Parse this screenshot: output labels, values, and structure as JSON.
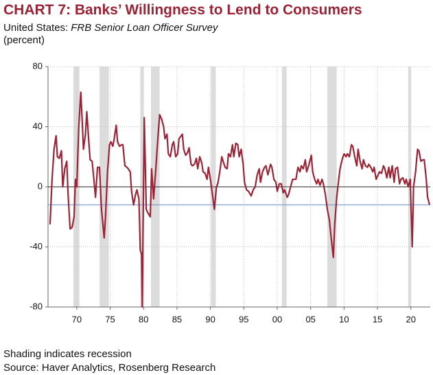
{
  "chart_data": {
    "type": "line",
    "title": "CHART 7: Banks’ Willingness to Lend to Consumers",
    "subtitle_prefix": "United States:",
    "subtitle": "FRB Senior Loan Officer Survey",
    "units": "(percent)",
    "footnotes": [
      "Shading indicates recession",
      "Source: Haver Analytics, Rosenberg Research"
    ],
    "xlim": [
      1965.7,
      2022.9
    ],
    "xticks": [
      {
        "value": 1970,
        "label": "70"
      },
      {
        "value": 1975,
        "label": "75"
      },
      {
        "value": 1980,
        "label": "80"
      },
      {
        "value": 1985,
        "label": "85"
      },
      {
        "value": 1990,
        "label": "90"
      },
      {
        "value": 1995,
        "label": "95"
      },
      {
        "value": 2000,
        "label": "00"
      },
      {
        "value": 2005,
        "label": "05"
      },
      {
        "value": 2010,
        "label": "10"
      },
      {
        "value": 2015,
        "label": "15"
      },
      {
        "value": 2020,
        "label": "20"
      }
    ],
    "ylim": [
      -80,
      80
    ],
    "yticks": [
      80,
      40,
      0,
      -40,
      -80
    ],
    "grid": true,
    "zero_line": true,
    "reference_line": -12,
    "reference_color": "#7f9fcf",
    "recession_color": "#dcdcdc",
    "recessions": [
      [
        1969.5,
        1970.4
      ],
      [
        1973.4,
        1974.8
      ],
      [
        1979.5,
        1980.0
      ],
      [
        1981.1,
        1982.4
      ],
      [
        1990.1,
        1990.8
      ],
      [
        2000.7,
        2001.4
      ],
      [
        2007.5,
        2008.9
      ],
      [
        2019.6,
        2020.0
      ]
    ],
    "series": [
      {
        "name": "Willingness to lend",
        "color": "#9b2335",
        "x": [
          1966.0,
          1966.3,
          1966.6,
          1966.9,
          1967.1,
          1967.4,
          1967.7,
          1967.9,
          1968.2,
          1968.5,
          1968.7,
          1969.0,
          1969.3,
          1969.6,
          1969.8,
          1970.0,
          1970.3,
          1970.6,
          1970.8,
          1971.0,
          1971.3,
          1971.5,
          1971.8,
          1972.0,
          1972.3,
          1972.6,
          1972.8,
          1973.1,
          1973.4,
          1973.7,
          1974.1,
          1974.3,
          1974.6,
          1974.9,
          1975.1,
          1975.4,
          1975.6,
          1975.9,
          1976.1,
          1976.4,
          1976.7,
          1976.9,
          1977.2,
          1977.5,
          1977.7,
          1978.0,
          1978.2,
          1978.5,
          1978.8,
          1979.0,
          1979.3,
          1979.5,
          1979.7,
          1979.8,
          1980.1,
          1980.4,
          1980.6,
          1981.0,
          1981.2,
          1981.5,
          1981.8,
          1982.1,
          1982.4,
          1982.7,
          1983.0,
          1983.2,
          1983.5,
          1983.7,
          1984.0,
          1984.3,
          1984.5,
          1984.8,
          1985.1,
          1985.3,
          1985.8,
          1986.0,
          1986.3,
          1986.6,
          1986.8,
          1987.1,
          1987.3,
          1987.6,
          1987.9,
          1988.1,
          1988.4,
          1988.7,
          1988.9,
          1989.2,
          1989.5,
          1989.7,
          1990.0,
          1990.3,
          1990.6,
          1990.9,
          1991.1,
          1991.4,
          1991.7,
          1991.9,
          1992.2,
          1992.5,
          1992.7,
          1993.0,
          1993.3,
          1993.5,
          1993.8,
          1994.1,
          1994.3,
          1994.6,
          1994.9,
          1995.1,
          1995.4,
          1995.7,
          1996.1,
          1996.4,
          1996.7,
          1997.0,
          1997.3,
          1997.5,
          1997.8,
          1998.1,
          1998.3,
          1998.6,
          1999.0,
          1999.2,
          1999.5,
          1999.8,
          2000.0,
          2000.3,
          2000.6,
          2000.9,
          2001.1,
          2001.5,
          2001.7,
          2002.0,
          2002.3,
          2002.5,
          2002.8,
          2003.1,
          2003.4,
          2003.6,
          2003.9,
          2004.2,
          2004.4,
          2004.7,
          2005.1,
          2005.3,
          2005.6,
          2005.9,
          2006.1,
          2006.4,
          2006.7,
          2006.9,
          2007.2,
          2007.5,
          2007.8,
          2008.1,
          2008.4,
          2008.6,
          2008.9,
          2009.2,
          2009.4,
          2009.7,
          2010.0,
          2010.3,
          2010.5,
          2010.8,
          2011.1,
          2011.3,
          2011.6,
          2011.9,
          2012.1,
          2012.4,
          2012.7,
          2012.9,
          2013.2,
          2013.5,
          2013.7,
          2014.0,
          2014.3,
          2014.5,
          2014.8,
          2015.1,
          2015.3,
          2015.6,
          2015.9,
          2016.1,
          2016.4,
          2016.7,
          2016.9,
          2017.2,
          2017.5,
          2017.7,
          2018.0,
          2018.3,
          2018.5,
          2018.8,
          2019.1,
          2019.3,
          2019.6,
          2019.9,
          2020.2,
          2020.4,
          2020.7,
          2021.0,
          2021.2,
          2021.5,
          2021.8,
          2022.0,
          2022.3,
          2022.5,
          2022.8
        ],
        "values": [
          -25,
          5,
          25,
          34,
          20,
          19,
          24,
          0,
          12,
          17,
          -5,
          -28,
          -27,
          -20,
          5,
          0,
          40,
          63,
          45,
          25,
          35,
          50,
          30,
          18,
          17,
          3,
          -7,
          13,
          13,
          -15,
          -34,
          -20,
          10,
          28,
          30,
          27,
          32,
          41,
          30,
          27,
          28,
          28,
          14,
          13,
          12,
          10,
          -3,
          -12,
          -5,
          -2,
          -8,
          -42,
          -45,
          -80,
          46,
          -15,
          -17,
          -20,
          12,
          -8,
          10,
          30,
          48,
          45,
          40,
          32,
          35,
          22,
          20,
          28,
          30,
          20,
          22,
          32,
          35,
          25,
          21,
          23,
          26,
          15,
          14,
          15,
          19,
          12,
          20,
          16,
          10,
          9,
          5,
          13,
          5,
          -5,
          -15,
          0,
          2,
          10,
          20,
          17,
          13,
          12,
          22,
          20,
          28,
          20,
          29,
          28,
          20,
          25,
          15,
          3,
          -2,
          -3,
          -6,
          -2,
          0,
          8,
          12,
          3,
          10,
          13,
          14,
          8,
          15,
          13,
          5,
          3,
          -3,
          2,
          2,
          -4,
          -2,
          -7,
          -5,
          0,
          5,
          5,
          5,
          13,
          10,
          14,
          12,
          18,
          10,
          14,
          21,
          10,
          5,
          2,
          5,
          1,
          5,
          2,
          -5,
          -15,
          -22,
          -35,
          -47,
          -25,
          -7,
          5,
          12,
          18,
          22,
          20,
          22,
          20,
          28,
          27,
          20,
          14,
          25,
          17,
          12,
          18,
          14,
          13,
          15,
          13,
          10,
          13,
          5,
          8,
          10,
          9,
          14,
          12,
          6,
          13,
          6,
          14,
          3,
          12,
          13,
          2,
          5,
          6,
          2,
          5,
          0,
          5,
          -40,
          0,
          10,
          25,
          24,
          17,
          18,
          18,
          5,
          -7,
          -12
        ]
      }
    ]
  }
}
